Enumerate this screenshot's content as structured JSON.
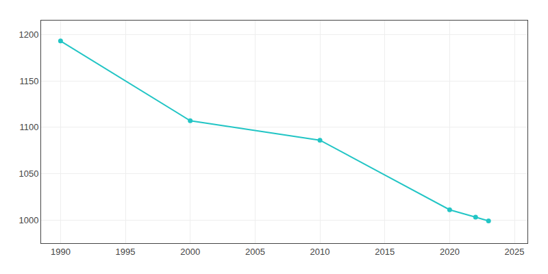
{
  "chart_data": {
    "type": "line",
    "x": [
      1990,
      2000,
      2010,
      2020,
      2022,
      2023
    ],
    "values": [
      1193,
      1107,
      1086,
      1011,
      1003,
      999
    ],
    "color": "#22c5c5",
    "marker": "circle",
    "xlim": [
      1988.5,
      2026
    ],
    "ylim": [
      975,
      1215
    ],
    "xticks": [
      1990,
      1995,
      2000,
      2005,
      2010,
      2015,
      2020,
      2025
    ],
    "yticks": [
      1000,
      1050,
      1100,
      1150,
      1200
    ],
    "grid": true
  }
}
